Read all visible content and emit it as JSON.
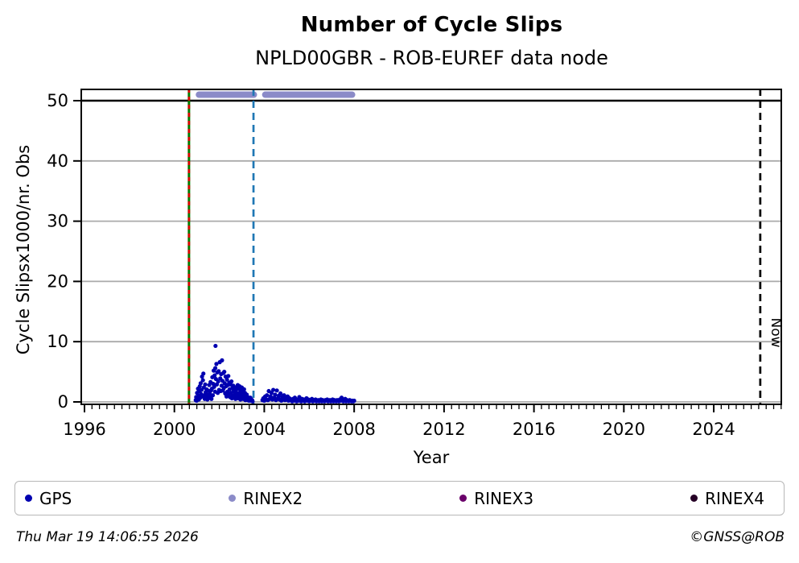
{
  "header": {
    "title": "Number of Cycle Slips",
    "subtitle": "NPLD00GBR - ROB-EUREF data node"
  },
  "footer": {
    "timestamp": "Thu Mar 19 14:06:55 2026",
    "credit": "©GNSS@ROB"
  },
  "legend": [
    {
      "label": "GPS",
      "color": "#0000B0"
    },
    {
      "label": "RINEX2",
      "color": "#8B8BC8"
    },
    {
      "label": "RINEX3",
      "color": "#6A006A"
    },
    {
      "label": "RINEX4",
      "color": "#250025"
    }
  ],
  "chart_data": {
    "type": "scatter",
    "title": "Number of Cycle Slips",
    "subtitle": "NPLD00GBR - ROB-EUREF data node",
    "xlabel": "Year",
    "ylabel": "Cycle Slipsx1000/nr. Obs",
    "xlim": [
      1995.82,
      2027.04
    ],
    "ylim": [
      -0.5,
      52.0
    ],
    "xticks": [
      1996,
      2000,
      2004,
      2008,
      2012,
      2016,
      2020,
      2024
    ],
    "x_minor_step": 0.33333,
    "yticks": [
      0,
      10,
      20,
      30,
      40,
      50
    ],
    "grid": {
      "show": true,
      "color": "#AAAAAA"
    },
    "threshold_line": {
      "y": 50,
      "color": "#000000"
    },
    "vlines": [
      {
        "x": 2000.65,
        "color": "#007A00",
        "style": "solid",
        "label": ""
      },
      {
        "x": 2000.65,
        "color": "#E00000",
        "style": "dashed",
        "label": ""
      },
      {
        "x": 2003.52,
        "color": "#1F77B4",
        "style": "dashed",
        "label": ""
      },
      {
        "x": 2026.07,
        "color": "#000000",
        "style": "dashed",
        "label": "Now"
      }
    ],
    "availability_bars": {
      "name": "RINEX2",
      "color": "#8B8BC8",
      "y": 51,
      "segments": [
        [
          2000.95,
          2003.68
        ],
        [
          2003.9,
          2008.05
        ]
      ]
    },
    "series": [
      {
        "name": "GPS",
        "color": "#0000B0",
        "points": [
          [
            2000.95,
            0.3
          ],
          [
            2000.97,
            0.8
          ],
          [
            2000.99,
            0.2
          ],
          [
            2001.01,
            1.5
          ],
          [
            2001.03,
            0.5
          ],
          [
            2001.05,
            2.2
          ],
          [
            2001.07,
            1.0
          ],
          [
            2001.09,
            0.4
          ],
          [
            2001.11,
            1.8
          ],
          [
            2001.13,
            2.6
          ],
          [
            2001.15,
            0.7
          ],
          [
            2001.17,
            3.1
          ],
          [
            2001.19,
            1.3
          ],
          [
            2001.21,
            2.0
          ],
          [
            2001.23,
            4.2
          ],
          [
            2001.25,
            0.9
          ],
          [
            2001.27,
            3.6
          ],
          [
            2001.29,
            4.7
          ],
          [
            2001.31,
            2.4
          ],
          [
            2001.33,
            1.1
          ],
          [
            2001.35,
            0.5
          ],
          [
            2001.37,
            2.9
          ],
          [
            2001.39,
            1.6
          ],
          [
            2001.41,
            0.8
          ],
          [
            2001.43,
            2.1
          ],
          [
            2001.45,
            1.2
          ],
          [
            2001.47,
            0.4
          ],
          [
            2001.49,
            1.9
          ],
          [
            2001.51,
            0.6
          ],
          [
            2001.53,
            1.0
          ],
          [
            2001.55,
            2.8
          ],
          [
            2001.57,
            1.4
          ],
          [
            2001.59,
            0.7
          ],
          [
            2001.61,
            3.3
          ],
          [
            2001.63,
            1.9
          ],
          [
            2001.65,
            0.5
          ],
          [
            2001.67,
            2.2
          ],
          [
            2001.69,
            4.1
          ],
          [
            2001.71,
            1.1
          ],
          [
            2001.73,
            3.0
          ],
          [
            2001.75,
            5.2
          ],
          [
            2001.77,
            2.5
          ],
          [
            2001.79,
            4.4
          ],
          [
            2001.81,
            1.7
          ],
          [
            2001.82,
            5.6
          ],
          [
            2001.83,
            9.3
          ],
          [
            2001.85,
            3.8
          ],
          [
            2001.87,
            6.3
          ],
          [
            2001.89,
            2.9
          ],
          [
            2001.91,
            4.9
          ],
          [
            2001.93,
            1.5
          ],
          [
            2001.95,
            3.4
          ],
          [
            2001.97,
            5.1
          ],
          [
            2001.99,
            2.0
          ],
          [
            2002.02,
            6.6
          ],
          [
            2002.04,
            3.9
          ],
          [
            2002.06,
            1.8
          ],
          [
            2002.08,
            4.6
          ],
          [
            2002.1,
            2.7
          ],
          [
            2002.12,
            6.9
          ],
          [
            2002.14,
            3.5
          ],
          [
            2002.16,
            1.9
          ],
          [
            2002.18,
            4.8
          ],
          [
            2002.2,
            2.3
          ],
          [
            2002.22,
            5.0
          ],
          [
            2002.24,
            3.1
          ],
          [
            2002.26,
            1.4
          ],
          [
            2002.28,
            4.2
          ],
          [
            2002.3,
            2.6
          ],
          [
            2002.32,
            0.9
          ],
          [
            2002.34,
            3.7
          ],
          [
            2002.36,
            1.7
          ],
          [
            2002.38,
            2.8
          ],
          [
            2002.4,
            4.3
          ],
          [
            2002.42,
            1.2
          ],
          [
            2002.44,
            3.2
          ],
          [
            2002.46,
            2.1
          ],
          [
            2002.48,
            0.8
          ],
          [
            2002.5,
            2.9
          ],
          [
            2002.52,
            1.5
          ],
          [
            2002.54,
            3.4
          ],
          [
            2002.56,
            0.6
          ],
          [
            2002.58,
            2.3
          ],
          [
            2002.6,
            1.1
          ],
          [
            2002.62,
            2.7
          ],
          [
            2002.64,
            1.8
          ],
          [
            2002.66,
            0.7
          ],
          [
            2002.68,
            2.4
          ],
          [
            2002.7,
            1.3
          ],
          [
            2002.72,
            0.5
          ],
          [
            2002.74,
            1.9
          ],
          [
            2002.76,
            0.8
          ],
          [
            2002.78,
            2.5
          ],
          [
            2002.8,
            1.4
          ],
          [
            2002.82,
            2.8
          ],
          [
            2002.84,
            0.6
          ],
          [
            2002.86,
            2.2
          ],
          [
            2002.88,
            1.0
          ],
          [
            2002.9,
            2.6
          ],
          [
            2002.92,
            1.6
          ],
          [
            2002.94,
            0.4
          ],
          [
            2002.96,
            2.0
          ],
          [
            2002.98,
            1.2
          ],
          [
            2003.0,
            2.4
          ],
          [
            2003.02,
            0.9
          ],
          [
            2003.04,
            1.7
          ],
          [
            2003.06,
            0.5
          ],
          [
            2003.08,
            1.3
          ],
          [
            2003.1,
            2.1
          ],
          [
            2003.12,
            0.7
          ],
          [
            2003.14,
            1.5
          ],
          [
            2003.16,
            0.3
          ],
          [
            2003.18,
            1.0
          ],
          [
            2003.2,
            0.6
          ],
          [
            2003.22,
            1.2
          ],
          [
            2003.24,
            0.4
          ],
          [
            2003.26,
            0.8
          ],
          [
            2003.28,
            0.3
          ],
          [
            2003.3,
            0.6
          ],
          [
            2003.32,
            0.2
          ],
          [
            2003.34,
            0.5
          ],
          [
            2003.36,
            0.3
          ],
          [
            2003.38,
            0.7
          ],
          [
            2003.4,
            0.2
          ],
          [
            2003.42,
            0.4
          ],
          [
            2003.44,
            0.2
          ],
          [
            2003.46,
            0.3
          ],
          [
            2003.48,
            0.1
          ],
          [
            2003.92,
            0.3
          ],
          [
            2003.96,
            0.6
          ],
          [
            2004.0,
            0.2
          ],
          [
            2004.04,
            0.9
          ],
          [
            2004.08,
            0.4
          ],
          [
            2004.12,
            1.1
          ],
          [
            2004.16,
            0.3
          ],
          [
            2004.2,
            1.8
          ],
          [
            2004.24,
            0.5
          ],
          [
            2004.28,
            0.9
          ],
          [
            2004.32,
            1.5
          ],
          [
            2004.36,
            0.4
          ],
          [
            2004.4,
            2.0
          ],
          [
            2004.44,
            0.7
          ],
          [
            2004.48,
            1.2
          ],
          [
            2004.52,
            0.3
          ],
          [
            2004.56,
            1.9
          ],
          [
            2004.6,
            0.6
          ],
          [
            2004.64,
            1.0
          ],
          [
            2004.68,
            0.4
          ],
          [
            2004.72,
            1.4
          ],
          [
            2004.76,
            0.2
          ],
          [
            2004.8,
            0.8
          ],
          [
            2004.84,
            0.5
          ],
          [
            2004.88,
            1.1
          ],
          [
            2004.92,
            0.3
          ],
          [
            2004.96,
            0.7
          ],
          [
            2005.0,
            0.4
          ],
          [
            2005.04,
            0.9
          ],
          [
            2005.08,
            0.2
          ],
          [
            2005.12,
            0.6
          ],
          [
            2005.16,
            0.3
          ],
          [
            2005.2,
            0.4
          ],
          [
            2005.24,
            0.1
          ],
          [
            2005.28,
            0.5
          ],
          [
            2005.32,
            0.2
          ],
          [
            2005.36,
            0.7
          ],
          [
            2005.4,
            0.3
          ],
          [
            2005.44,
            0.1
          ],
          [
            2005.48,
            0.4
          ],
          [
            2005.52,
            0.2
          ],
          [
            2005.56,
            0.8
          ],
          [
            2005.6,
            0.3
          ],
          [
            2005.64,
            0.1
          ],
          [
            2005.68,
            0.5
          ],
          [
            2005.72,
            0.2
          ],
          [
            2005.76,
            0.4
          ],
          [
            2005.8,
            0.1
          ],
          [
            2005.84,
            0.3
          ],
          [
            2005.88,
            0.6
          ],
          [
            2005.92,
            0.2
          ],
          [
            2005.96,
            0.4
          ],
          [
            2006.0,
            0.1
          ],
          [
            2006.04,
            0.3
          ],
          [
            2006.08,
            0.2
          ],
          [
            2006.12,
            0.5
          ],
          [
            2006.16,
            0.1
          ],
          [
            2006.2,
            0.3
          ],
          [
            2006.24,
            0.2
          ],
          [
            2006.28,
            0.4
          ],
          [
            2006.32,
            0.1
          ],
          [
            2006.36,
            0.2
          ],
          [
            2006.4,
            0.3
          ],
          [
            2006.44,
            0.1
          ],
          [
            2006.48,
            0.2
          ],
          [
            2006.52,
            0.4
          ],
          [
            2006.56,
            0.1
          ],
          [
            2006.6,
            0.3
          ],
          [
            2006.64,
            0.2
          ],
          [
            2006.68,
            0.1
          ],
          [
            2006.72,
            0.3
          ],
          [
            2006.76,
            0.2
          ],
          [
            2006.8,
            0.4
          ],
          [
            2006.84,
            0.1
          ],
          [
            2006.88,
            0.2
          ],
          [
            2006.92,
            0.3
          ],
          [
            2006.96,
            0.1
          ],
          [
            2007.0,
            0.2
          ],
          [
            2007.04,
            0.4
          ],
          [
            2007.08,
            0.1
          ],
          [
            2007.12,
            0.3
          ],
          [
            2007.16,
            0.2
          ],
          [
            2007.2,
            0.1
          ],
          [
            2007.24,
            0.3
          ],
          [
            2007.28,
            0.2
          ],
          [
            2007.32,
            0.1
          ],
          [
            2007.36,
            0.4
          ],
          [
            2007.4,
            0.2
          ],
          [
            2007.44,
            0.7
          ],
          [
            2007.48,
            0.3
          ],
          [
            2007.52,
            0.1
          ],
          [
            2007.56,
            0.2
          ],
          [
            2007.6,
            0.5
          ],
          [
            2007.64,
            0.1
          ],
          [
            2007.68,
            0.3
          ],
          [
            2007.72,
            0.2
          ],
          [
            2007.76,
            0.1
          ],
          [
            2007.8,
            0.3
          ],
          [
            2007.84,
            0.2
          ],
          [
            2007.88,
            0.1
          ],
          [
            2007.92,
            0.2
          ],
          [
            2007.96,
            0.1
          ],
          [
            2008.0,
            0.2
          ]
        ]
      }
    ]
  }
}
